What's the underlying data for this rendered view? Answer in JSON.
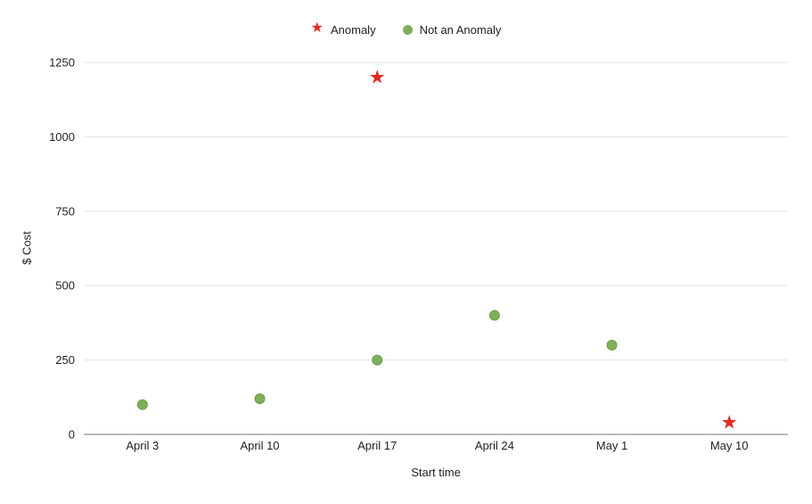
{
  "chart_data": {
    "type": "scatter",
    "title": "",
    "xlabel": "Start time",
    "ylabel": "$ Cost",
    "categories": [
      "April 3",
      "April 10",
      "April 17",
      "April 24",
      "May 1",
      "May 10"
    ],
    "y_ticks": [
      0,
      250,
      500,
      750,
      1000,
      1250
    ],
    "ylim": [
      0,
      1250
    ],
    "grid": true,
    "legend_position": "top-center",
    "colors": {
      "grid": "#e3e3e3",
      "axis_line": "#757575",
      "tick_text": "#1f1f1f",
      "anomaly": "#e02b20",
      "normal": "#7faf5b",
      "normal_stroke": "#6d9e4b",
      "background": "#ffffff"
    },
    "legend": [
      {
        "label": "Anomaly",
        "marker": "star",
        "glyph": "★",
        "color": "#e02b20"
      },
      {
        "label": "Not an Anomaly",
        "marker": "circle",
        "color": "#7faf5b"
      }
    ],
    "series": [
      {
        "name": "Anomaly",
        "marker": "star",
        "color": "#e02b20",
        "points": [
          {
            "x": "April 17",
            "y": 1200
          },
          {
            "x": "May 10",
            "y": 40
          }
        ]
      },
      {
        "name": "Not an Anomaly",
        "marker": "circle",
        "color": "#7faf5b",
        "stroke": "#6d9e4b",
        "points": [
          {
            "x": "April 3",
            "y": 100
          },
          {
            "x": "April 10",
            "y": 120
          },
          {
            "x": "April 17",
            "y": 250
          },
          {
            "x": "April 24",
            "y": 400
          },
          {
            "x": "May 1",
            "y": 300
          }
        ]
      }
    ]
  }
}
